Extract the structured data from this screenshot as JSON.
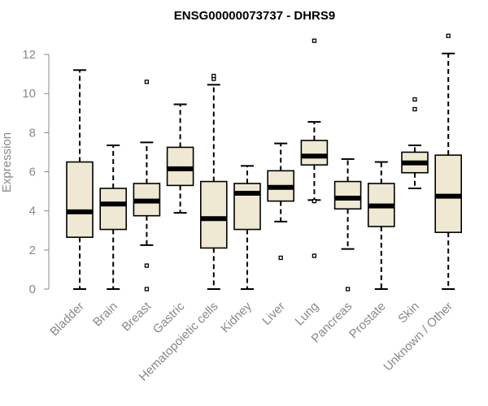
{
  "chart_data": {
    "type": "boxplot",
    "title": "ENSG00000073737 - DHRS9",
    "xlabel": "",
    "ylabel": "Expression",
    "ylim": [
      0,
      12.5
    ],
    "yticks": [
      0,
      2,
      4,
      6,
      8,
      10,
      12
    ],
    "categories": [
      "Bladder",
      "Brain",
      "Breast",
      "Gastric",
      "Hematopoietic cells",
      "Kidney",
      "Liver",
      "Lung",
      "Pancreas",
      "Prostate",
      "Skin",
      "Unknown / Other"
    ],
    "series": [
      {
        "name": "Expression",
        "boxes": [
          {
            "category": "Bladder",
            "whisker_low": 0.0,
            "q1": 2.65,
            "median": 3.95,
            "q3": 6.5,
            "whisker_high": 11.2,
            "outliers": []
          },
          {
            "category": "Brain",
            "whisker_low": 0.0,
            "q1": 3.05,
            "median": 4.35,
            "q3": 5.15,
            "whisker_high": 7.35,
            "outliers": []
          },
          {
            "category": "Breast",
            "whisker_low": 2.25,
            "q1": 3.75,
            "median": 4.5,
            "q3": 5.4,
            "whisker_high": 7.5,
            "outliers": [
              0.0,
              1.2,
              10.6
            ]
          },
          {
            "category": "Gastric",
            "whisker_low": 3.9,
            "q1": 5.3,
            "median": 6.15,
            "q3": 7.25,
            "whisker_high": 9.45,
            "outliers": []
          },
          {
            "category": "Hematopoietic cells",
            "whisker_low": 0.0,
            "q1": 2.1,
            "median": 3.6,
            "q3": 5.5,
            "whisker_high": 10.45,
            "outliers": [
              10.75,
              10.9
            ]
          },
          {
            "category": "Kidney",
            "whisker_low": 0.0,
            "q1": 3.05,
            "median": 4.9,
            "q3": 5.4,
            "whisker_high": 6.3,
            "outliers": []
          },
          {
            "category": "Liver",
            "whisker_low": 3.45,
            "q1": 4.5,
            "median": 5.2,
            "q3": 6.05,
            "whisker_high": 7.45,
            "outliers": [
              1.6
            ]
          },
          {
            "category": "Lung",
            "whisker_low": 4.55,
            "q1": 6.35,
            "median": 6.8,
            "q3": 7.6,
            "whisker_high": 8.55,
            "outliers": [
              1.7,
              4.5,
              12.7
            ]
          },
          {
            "category": "Pancreas",
            "whisker_low": 2.05,
            "q1": 4.1,
            "median": 4.65,
            "q3": 5.5,
            "whisker_high": 6.65,
            "outliers": [
              0.0
            ]
          },
          {
            "category": "Prostate",
            "whisker_low": 0.0,
            "q1": 3.2,
            "median": 4.25,
            "q3": 5.4,
            "whisker_high": 6.5,
            "outliers": []
          },
          {
            "category": "Skin",
            "whisker_low": 5.15,
            "q1": 5.95,
            "median": 6.45,
            "q3": 7.0,
            "whisker_high": 7.35,
            "outliers": [
              9.2,
              9.7
            ]
          },
          {
            "category": "Unknown / Other",
            "whisker_low": 0.0,
            "q1": 2.9,
            "median": 4.75,
            "q3": 6.85,
            "whisker_high": 12.05,
            "outliers": [
              12.95
            ]
          }
        ]
      }
    ],
    "colors": {
      "box_fill": "#efe8d2",
      "box_stroke": "#000000",
      "median": "#000000",
      "axis": "#888888",
      "text": "#888888",
      "title": "#000000"
    },
    "grid": false,
    "legend": "none"
  }
}
